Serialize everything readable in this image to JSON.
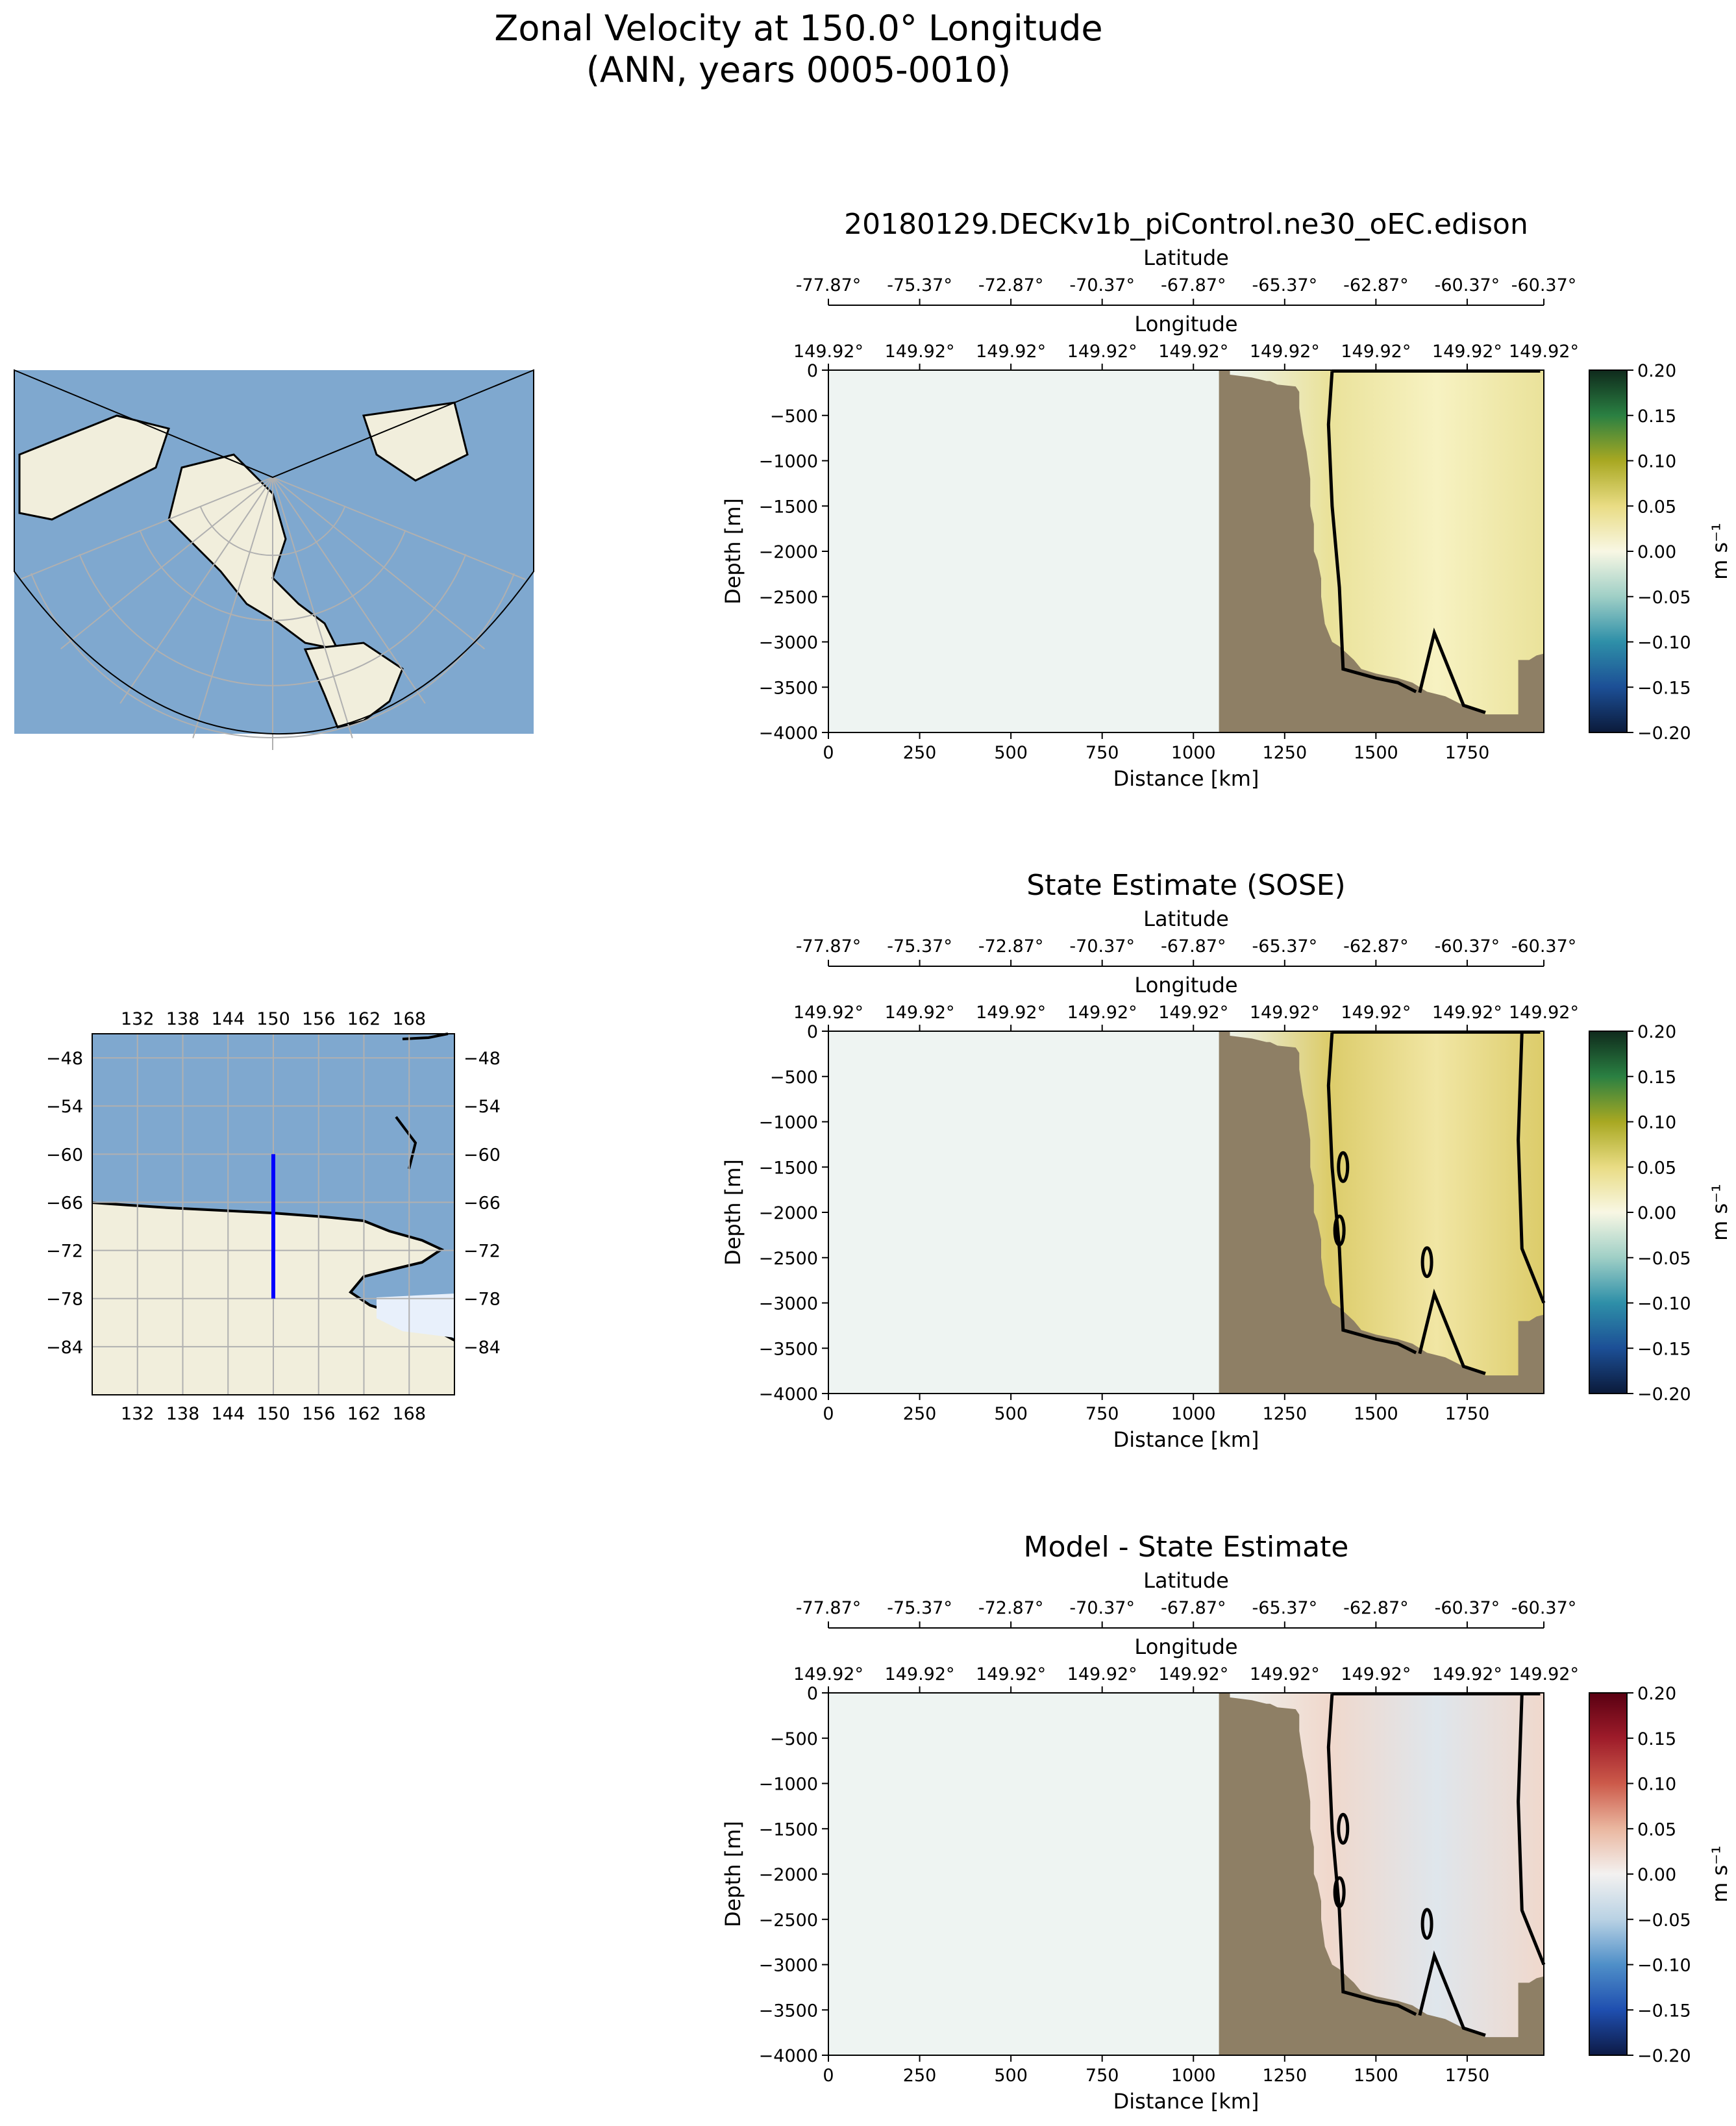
{
  "figure": {
    "title_line1": "Zonal Velocity at 150.0° Longitude",
    "title_line2": "(ANN, years 0005-0010)"
  },
  "colors": {
    "seafloor": "#8e7f65",
    "ocean_map": "#7fa8cf",
    "land_map": "#f1eedc",
    "transect_line": "#0000ff"
  },
  "inset_map": {
    "x_ticks": [
      "132",
      "138",
      "144",
      "150",
      "156",
      "162",
      "168"
    ],
    "y_ticks": [
      "−48",
      "−54",
      "−60",
      "−66",
      "−72",
      "−78",
      "−84"
    ],
    "transect": {
      "longitude": 150,
      "lat_start": -60,
      "lat_end": -78
    }
  },
  "chart_data": [
    {
      "type": "heatmap",
      "title": "20180129.DECKv1b_piControl.ne30_oEC.edison",
      "xlabel": "Distance [km]",
      "ylabel": "Depth [m]",
      "top_axis_label_1": "Latitude",
      "top_axis_label_2": "Longitude",
      "x_ticks": [
        "0",
        "250",
        "500",
        "750",
        "1000",
        "1250",
        "1500",
        "1750"
      ],
      "x_tick_values": [
        0,
        250,
        500,
        750,
        1000,
        1250,
        1500,
        1750
      ],
      "xlim": [
        0,
        1960
      ],
      "ylim": [
        -4000,
        0
      ],
      "y_ticks": [
        "0",
        "−500",
        "−1000",
        "−1500",
        "−2000",
        "−2500",
        "−3000",
        "−3500",
        "−4000"
      ],
      "y_tick_values": [
        0,
        -500,
        -1000,
        -1500,
        -2000,
        -2500,
        -3000,
        -3500,
        -4000
      ],
      "lat_ticks": [
        "-77.87°",
        "-75.37°",
        "-72.87°",
        "-70.37°",
        "-67.87°",
        "-65.37°",
        "-62.87°",
        "-60.37°"
      ],
      "lon_ticks": [
        "149.92°",
        "149.92°",
        "149.92°",
        "149.92°",
        "149.92°",
        "149.92°",
        "149.92°",
        "149.92°"
      ],
      "colorbar": {
        "label": "m s⁻¹",
        "ticks": [
          "0.20",
          "0.15",
          "0.10",
          "0.05",
          "0.00",
          "−0.05",
          "−0.10",
          "−0.15",
          "−0.20"
        ],
        "range": [
          -0.2,
          0.2
        ],
        "stops": [
          "#0b1a3a",
          "#1c4f96",
          "#2e8fa8",
          "#9fcfc6",
          "#f8f7e4",
          "#e9dc84",
          "#a8a822",
          "#2a8042",
          "#0f2a1c"
        ]
      },
      "field_color": "#f7f2c2",
      "field_secondary": "#eae29a"
    },
    {
      "type": "heatmap",
      "title": "State Estimate (SOSE)",
      "xlabel": "Distance [km]",
      "ylabel": "Depth [m]",
      "top_axis_label_1": "Latitude",
      "top_axis_label_2": "Longitude",
      "x_ticks": [
        "0",
        "250",
        "500",
        "750",
        "1000",
        "1250",
        "1500",
        "1750"
      ],
      "x_tick_values": [
        0,
        250,
        500,
        750,
        1000,
        1250,
        1500,
        1750
      ],
      "xlim": [
        0,
        1960
      ],
      "ylim": [
        -4000,
        0
      ],
      "y_ticks": [
        "0",
        "−500",
        "−1000",
        "−1500",
        "−2000",
        "−2500",
        "−3000",
        "−3500",
        "−4000"
      ],
      "y_tick_values": [
        0,
        -500,
        -1000,
        -1500,
        -2000,
        -2500,
        -3000,
        -3500,
        -4000
      ],
      "lat_ticks": [
        "-77.87°",
        "-75.37°",
        "-72.87°",
        "-70.37°",
        "-67.87°",
        "-65.37°",
        "-62.87°",
        "-60.37°"
      ],
      "lon_ticks": [
        "149.92°",
        "149.92°",
        "149.92°",
        "149.92°",
        "149.92°",
        "149.92°",
        "149.92°",
        "149.92°"
      ],
      "colorbar": {
        "label": "m s⁻¹",
        "ticks": [
          "0.20",
          "0.15",
          "0.10",
          "0.05",
          "0.00",
          "−0.05",
          "−0.10",
          "−0.15",
          "−0.20"
        ],
        "range": [
          -0.2,
          0.2
        ],
        "stops": [
          "#0b1a3a",
          "#1c4f96",
          "#2e8fa8",
          "#9fcfc6",
          "#f8f7e4",
          "#e9dc84",
          "#a8a822",
          "#2a8042",
          "#0f2a1c"
        ]
      },
      "field_color": "#f1e6a4",
      "field_secondary": "#dccc6a"
    },
    {
      "type": "heatmap",
      "title": "Model - State Estimate",
      "xlabel": "Distance [km]",
      "ylabel": "Depth [m]",
      "top_axis_label_1": "Latitude",
      "top_axis_label_2": "Longitude",
      "x_ticks": [
        "0",
        "250",
        "500",
        "750",
        "1000",
        "1250",
        "1500",
        "1750"
      ],
      "x_tick_values": [
        0,
        250,
        500,
        750,
        1000,
        1250,
        1500,
        1750
      ],
      "xlim": [
        0,
        1960
      ],
      "ylim": [
        -4000,
        0
      ],
      "y_ticks": [
        "0",
        "−500",
        "−1000",
        "−1500",
        "−2000",
        "−2500",
        "−3000",
        "−3500",
        "−4000"
      ],
      "y_tick_values": [
        0,
        -500,
        -1000,
        -1500,
        -2000,
        -2500,
        -3000,
        -3500,
        -4000
      ],
      "lat_ticks": [
        "-77.87°",
        "-75.37°",
        "-72.87°",
        "-70.37°",
        "-67.87°",
        "-65.37°",
        "-62.87°",
        "-60.37°"
      ],
      "lon_ticks": [
        "149.92°",
        "149.92°",
        "149.92°",
        "149.92°",
        "149.92°",
        "149.92°",
        "149.92°",
        "149.92°"
      ],
      "colorbar": {
        "label": "m s⁻¹",
        "ticks": [
          "0.20",
          "0.15",
          "0.10",
          "0.05",
          "0.00",
          "−0.05",
          "−0.10",
          "−0.15",
          "−0.20"
        ],
        "range": [
          -0.2,
          0.2
        ],
        "stops": [
          "#0d1a45",
          "#1f4fb0",
          "#4f8fc8",
          "#b9d2e4",
          "#f3f1f0",
          "#eab7a0",
          "#cc5a4a",
          "#9e1c2a",
          "#5a0012"
        ]
      },
      "field_color": "#dfe6ec",
      "field_secondary": "#f0d8cc"
    }
  ]
}
